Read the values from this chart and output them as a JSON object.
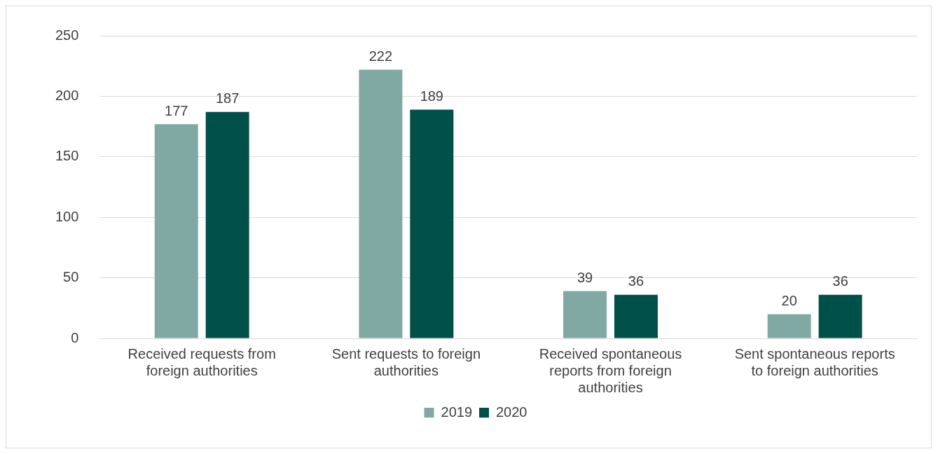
{
  "chart_data": {
    "type": "bar",
    "categories": [
      "Received requests from foreign authorities",
      "Sent requests to foreign authorities",
      "Received spontaneous reports from foreign authorities",
      "Sent spontaneous reports to foreign authorities"
    ],
    "series": [
      {
        "name": "2019",
        "color": "#7fa9a2",
        "values": [
          177,
          222,
          39,
          20
        ]
      },
      {
        "name": "2020",
        "color": "#00504a",
        "values": [
          187,
          189,
          36,
          36
        ]
      }
    ],
    "ylim": [
      0,
      250
    ],
    "yticks": [
      0,
      50,
      100,
      150,
      200,
      250
    ],
    "grid": "y",
    "legend": "bottom",
    "data_labels": true
  }
}
